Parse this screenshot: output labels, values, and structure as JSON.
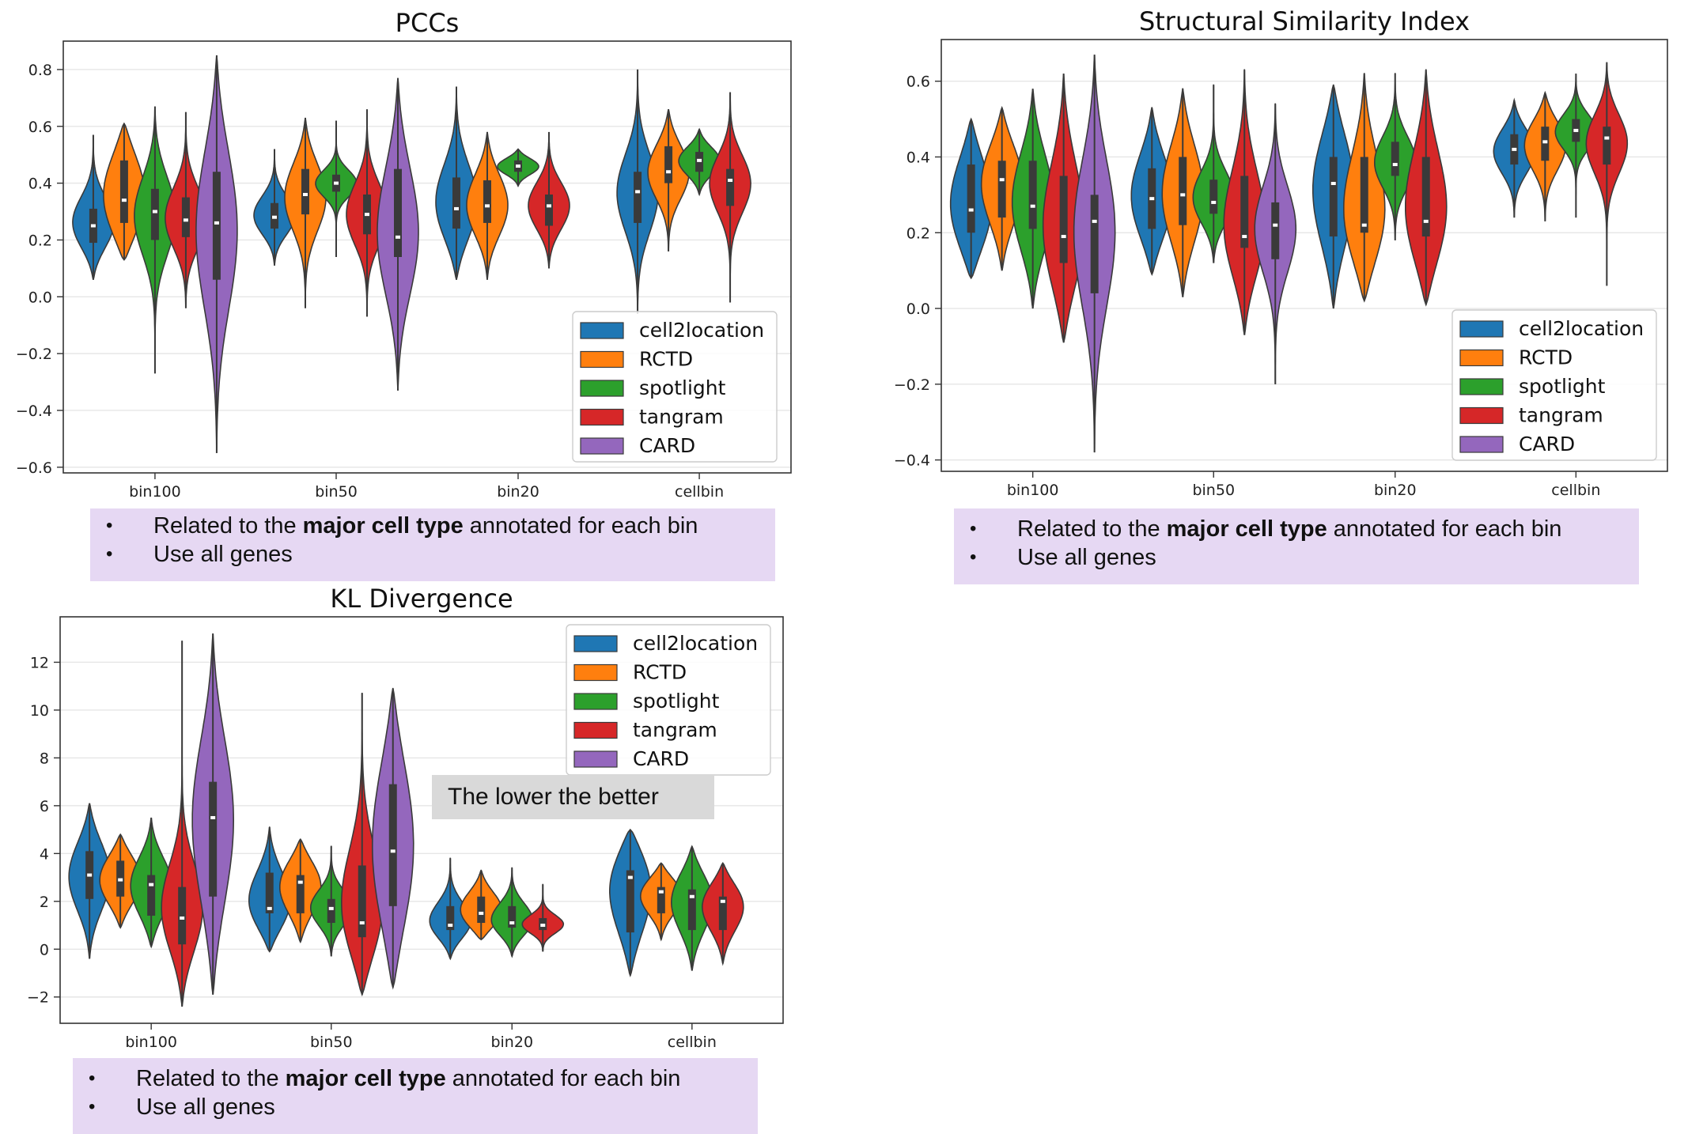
{
  "chart_data": [
    {
      "type": "violin",
      "title": "PCCs",
      "xlabel": "",
      "ylabel": "",
      "categories": [
        "bin100",
        "bin50",
        "bin20",
        "cellbin"
      ],
      "ylim": [
        -0.62,
        0.9
      ],
      "yticks": [
        0.8,
        0.6,
        0.4,
        0.2,
        0.0,
        -0.2,
        -0.4,
        -0.6
      ],
      "ytick_labels": [
        "0.8",
        "0.6",
        "0.4",
        "0.2",
        "0.0",
        "−0.2",
        "−0.4",
        "−0.6"
      ],
      "grid": true,
      "legend_position": "bottom-right",
      "series": [
        {
          "name": "cell2location",
          "color": "#1f77b4",
          "stats": [
            {
              "min": 0.06,
              "q1": 0.19,
              "median": 0.25,
              "q3": 0.31,
              "max": 0.57
            },
            {
              "min": 0.11,
              "q1": 0.24,
              "median": 0.28,
              "q3": 0.33,
              "max": 0.52
            },
            {
              "min": 0.06,
              "q1": 0.24,
              "median": 0.31,
              "q3": 0.42,
              "max": 0.74
            },
            {
              "min": -0.06,
              "q1": 0.26,
              "median": 0.37,
              "q3": 0.44,
              "max": 0.8
            }
          ]
        },
        {
          "name": "RCTD",
          "color": "#ff7f0e",
          "stats": [
            {
              "min": 0.13,
              "q1": 0.26,
              "median": 0.34,
              "q3": 0.48,
              "max": 0.61
            },
            {
              "min": -0.04,
              "q1": 0.29,
              "median": 0.36,
              "q3": 0.45,
              "max": 0.63
            },
            {
              "min": 0.06,
              "q1": 0.26,
              "median": 0.32,
              "q3": 0.41,
              "max": 0.58
            },
            {
              "min": 0.16,
              "q1": 0.4,
              "median": 0.44,
              "q3": 0.53,
              "max": 0.66
            }
          ]
        },
        {
          "name": "spotlight",
          "color": "#2ca02c",
          "stats": [
            {
              "min": -0.27,
              "q1": 0.2,
              "median": 0.3,
              "q3": 0.38,
              "max": 0.67
            },
            {
              "min": 0.14,
              "q1": 0.37,
              "median": 0.4,
              "q3": 0.43,
              "max": 0.62
            },
            {
              "min": 0.39,
              "q1": 0.44,
              "median": 0.46,
              "q3": 0.48,
              "max": 0.52
            },
            {
              "min": 0.36,
              "q1": 0.44,
              "median": 0.48,
              "q3": 0.51,
              "max": 0.59
            }
          ]
        },
        {
          "name": "tangram",
          "color": "#d62728",
          "stats": [
            {
              "min": -0.04,
              "q1": 0.21,
              "median": 0.27,
              "q3": 0.35,
              "max": 0.65
            },
            {
              "min": -0.07,
              "q1": 0.22,
              "median": 0.29,
              "q3": 0.36,
              "max": 0.66
            },
            {
              "min": 0.1,
              "q1": 0.25,
              "median": 0.32,
              "q3": 0.36,
              "max": 0.58
            },
            {
              "min": -0.02,
              "q1": 0.32,
              "median": 0.41,
              "q3": 0.45,
              "max": 0.72
            }
          ]
        },
        {
          "name": "CARD",
          "color": "#9467bd",
          "stats": [
            {
              "min": -0.55,
              "q1": 0.06,
              "median": 0.26,
              "q3": 0.44,
              "max": 0.85
            },
            {
              "min": -0.33,
              "q1": 0.14,
              "median": 0.21,
              "q3": 0.45,
              "max": 0.77
            },
            null,
            null
          ]
        }
      ]
    },
    {
      "type": "violin",
      "title": "Structural Similarity Index",
      "xlabel": "",
      "ylabel": "",
      "categories": [
        "bin100",
        "bin50",
        "bin20",
        "cellbin"
      ],
      "ylim": [
        -0.43,
        0.71
      ],
      "yticks": [
        0.6,
        0.4,
        0.2,
        0.0,
        -0.2,
        -0.4
      ],
      "ytick_labels": [
        "0.6",
        "0.4",
        "0.2",
        "0.0",
        "−0.2",
        "−0.4"
      ],
      "grid": true,
      "legend_position": "bottom-right",
      "series": [
        {
          "name": "cell2location",
          "color": "#1f77b4",
          "stats": [
            {
              "min": 0.08,
              "q1": 0.2,
              "median": 0.26,
              "q3": 0.38,
              "max": 0.5
            },
            {
              "min": 0.09,
              "q1": 0.21,
              "median": 0.29,
              "q3": 0.37,
              "max": 0.53
            },
            {
              "min": 0.0,
              "q1": 0.19,
              "median": 0.33,
              "q3": 0.4,
              "max": 0.59
            },
            {
              "min": 0.24,
              "q1": 0.38,
              "median": 0.42,
              "q3": 0.46,
              "max": 0.55
            }
          ]
        },
        {
          "name": "RCTD",
          "color": "#ff7f0e",
          "stats": [
            {
              "min": 0.1,
              "q1": 0.24,
              "median": 0.34,
              "q3": 0.39,
              "max": 0.53
            },
            {
              "min": 0.03,
              "q1": 0.22,
              "median": 0.3,
              "q3": 0.4,
              "max": 0.58
            },
            {
              "min": 0.02,
              "q1": 0.2,
              "median": 0.22,
              "q3": 0.4,
              "max": 0.62
            },
            {
              "min": 0.23,
              "q1": 0.39,
              "median": 0.44,
              "q3": 0.48,
              "max": 0.57
            }
          ]
        },
        {
          "name": "spotlight",
          "color": "#2ca02c",
          "stats": [
            {
              "min": 0.0,
              "q1": 0.21,
              "median": 0.27,
              "q3": 0.39,
              "max": 0.58
            },
            {
              "min": 0.12,
              "q1": 0.25,
              "median": 0.28,
              "q3": 0.34,
              "max": 0.59
            },
            {
              "min": 0.18,
              "q1": 0.35,
              "median": 0.38,
              "q3": 0.44,
              "max": 0.62
            },
            {
              "min": 0.24,
              "q1": 0.44,
              "median": 0.47,
              "q3": 0.5,
              "max": 0.62
            }
          ]
        },
        {
          "name": "tangram",
          "color": "#d62728",
          "stats": [
            {
              "min": -0.09,
              "q1": 0.12,
              "median": 0.19,
              "q3": 0.35,
              "max": 0.62
            },
            {
              "min": -0.07,
              "q1": 0.16,
              "median": 0.19,
              "q3": 0.35,
              "max": 0.63
            },
            {
              "min": 0.01,
              "q1": 0.19,
              "median": 0.23,
              "q3": 0.4,
              "max": 0.63
            },
            {
              "min": 0.06,
              "q1": 0.38,
              "median": 0.45,
              "q3": 0.48,
              "max": 0.65
            }
          ]
        },
        {
          "name": "CARD",
          "color": "#9467bd",
          "stats": [
            {
              "min": -0.38,
              "q1": 0.04,
              "median": 0.23,
              "q3": 0.3,
              "max": 0.67
            },
            {
              "min": -0.2,
              "q1": 0.13,
              "median": 0.22,
              "q3": 0.28,
              "max": 0.54
            },
            null,
            null
          ]
        }
      ]
    },
    {
      "type": "violin",
      "title": "KL Divergence",
      "xlabel": "",
      "ylabel": "",
      "categories": [
        "bin100",
        "bin50",
        "bin20",
        "cellbin"
      ],
      "ylim": [
        -3.1,
        13.9
      ],
      "yticks": [
        12,
        10,
        8,
        6,
        4,
        2,
        0,
        -2
      ],
      "ytick_labels": [
        "12",
        "10",
        "8",
        "6",
        "4",
        "2",
        "0",
        "−2"
      ],
      "grid": true,
      "legend_position": "top-right",
      "annotation": "The lower the better",
      "series": [
        {
          "name": "cell2location",
          "color": "#1f77b4",
          "stats": [
            {
              "min": -0.4,
              "q1": 2.1,
              "median": 3.1,
              "q3": 4.1,
              "max": 6.1
            },
            {
              "min": -0.1,
              "q1": 1.5,
              "median": 1.7,
              "q3": 3.2,
              "max": 5.1
            },
            {
              "min": -0.4,
              "q1": 0.8,
              "median": 1.0,
              "q3": 1.8,
              "max": 3.8
            },
            {
              "min": -1.1,
              "q1": 0.7,
              "median": 3.0,
              "q3": 3.3,
              "max": 5.0
            }
          ]
        },
        {
          "name": "RCTD",
          "color": "#ff7f0e",
          "stats": [
            {
              "min": 0.9,
              "q1": 2.2,
              "median": 2.9,
              "q3": 3.7,
              "max": 4.8
            },
            {
              "min": 0.3,
              "q1": 1.5,
              "median": 2.8,
              "q3": 3.1,
              "max": 4.6
            },
            {
              "min": 0.4,
              "q1": 1.1,
              "median": 1.5,
              "q3": 2.2,
              "max": 3.3
            },
            {
              "min": 0.4,
              "q1": 1.5,
              "median": 2.4,
              "q3": 2.6,
              "max": 3.6
            }
          ]
        },
        {
          "name": "spotlight",
          "color": "#2ca02c",
          "stats": [
            {
              "min": 0.1,
              "q1": 1.4,
              "median": 2.7,
              "q3": 3.1,
              "max": 5.5
            },
            {
              "min": -0.3,
              "q1": 1.1,
              "median": 1.7,
              "q3": 2.1,
              "max": 4.3
            },
            {
              "min": -0.3,
              "q1": 0.9,
              "median": 1.1,
              "q3": 1.8,
              "max": 3.4
            },
            {
              "min": -0.9,
              "q1": 0.8,
              "median": 2.2,
              "q3": 2.5,
              "max": 4.3
            }
          ]
        },
        {
          "name": "tangram",
          "color": "#d62728",
          "stats": [
            {
              "min": -2.4,
              "q1": 0.2,
              "median": 1.3,
              "q3": 2.6,
              "max": 12.9
            },
            {
              "min": -1.9,
              "q1": 0.5,
              "median": 1.1,
              "q3": 3.5,
              "max": 10.7
            },
            {
              "min": -0.1,
              "q1": 0.8,
              "median": 1.0,
              "q3": 1.3,
              "max": 2.7
            },
            {
              "min": -0.6,
              "q1": 0.8,
              "median": 2.0,
              "q3": 2.2,
              "max": 3.6
            }
          ]
        },
        {
          "name": "CARD",
          "color": "#9467bd",
          "stats": [
            {
              "min": -1.9,
              "q1": 2.2,
              "median": 5.5,
              "q3": 7.0,
              "max": 13.2
            },
            {
              "min": -1.6,
              "q1": 1.8,
              "median": 4.1,
              "q3": 6.9,
              "max": 10.9
            },
            null,
            null
          ]
        }
      ]
    }
  ],
  "notes": [
    {
      "bullet": "•",
      "pre": "Related to the ",
      "bold": "major cell type",
      "post": " annotated for each bin",
      "line2": "Use all genes"
    },
    {
      "bullet": "•",
      "pre": "Related to the ",
      "bold": "major cell type",
      "post": " annotated for each bin",
      "line2": "Use all genes"
    },
    {
      "bullet": "•",
      "pre": "Related to the ",
      "bold": "major cell type",
      "post": " annotated for each bin",
      "line2": "Use all genes"
    }
  ]
}
